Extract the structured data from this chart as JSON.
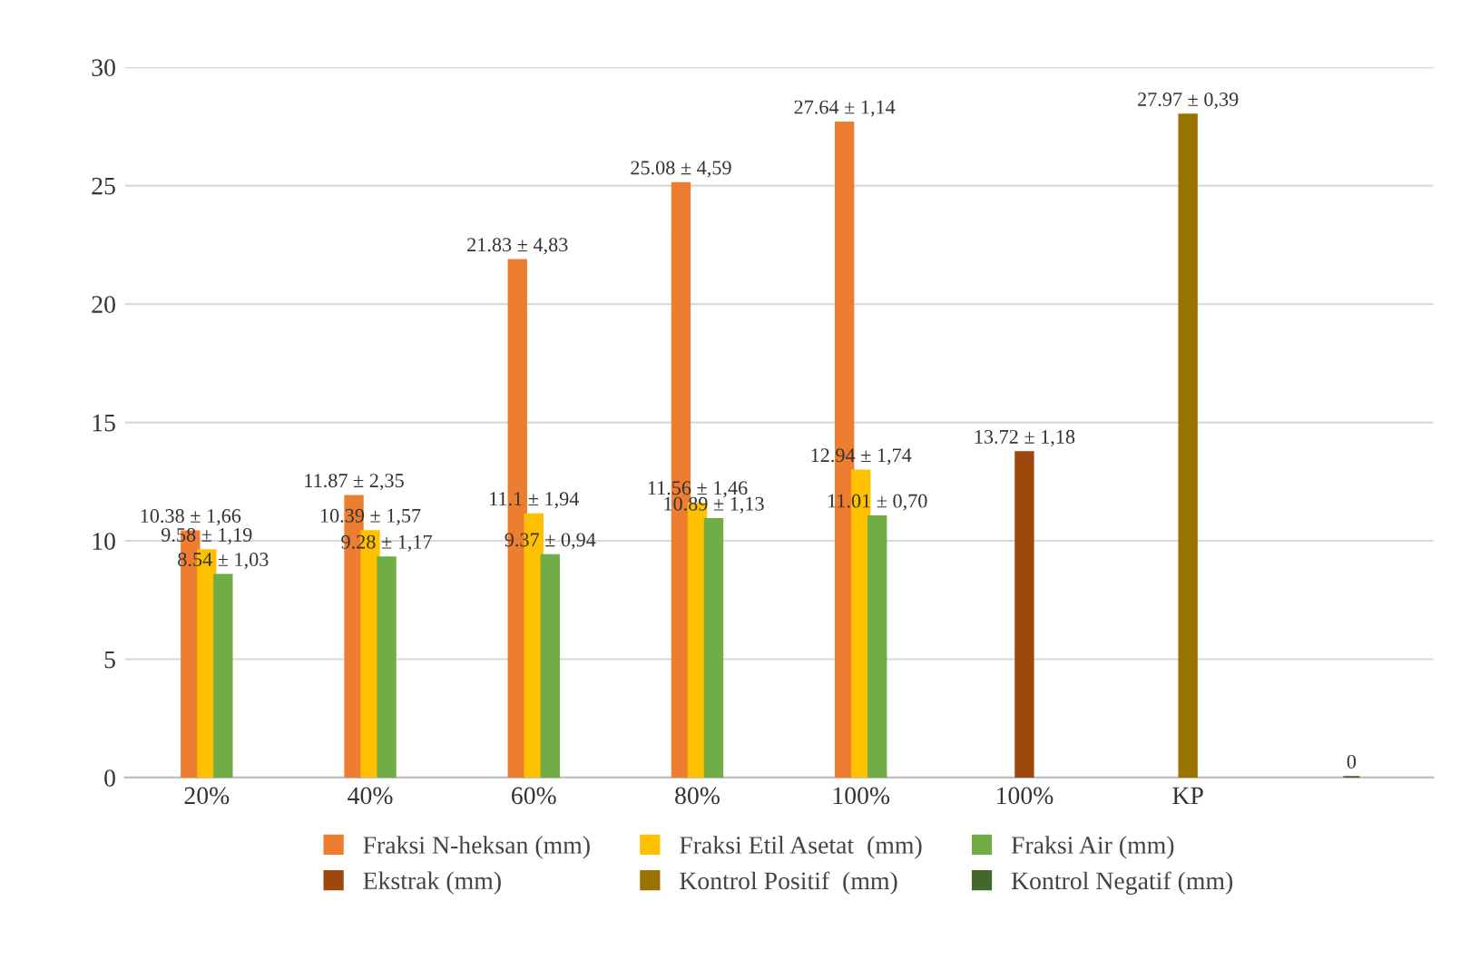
{
  "chart_data": {
    "type": "bar",
    "categories": [
      "20%",
      "40%",
      "60%",
      "80%",
      "100%",
      "100%",
      "KP",
      null
    ],
    "series": [
      {
        "name": "Fraksi N-heksan (mm)",
        "color": "#ed7d31",
        "values": [
          10.38,
          11.87,
          21.83,
          25.08,
          27.64,
          null,
          null,
          null
        ],
        "value_labels": [
          "10.38 ± 1,66",
          "11.87 ± 2,35",
          "21.83 ± 4,83",
          "25.08 ± 4,59",
          "27.64 ± 1,14",
          null,
          null,
          null
        ]
      },
      {
        "name": "Fraksi Etil Asetat  (mm)",
        "color": "#ffc000",
        "values": [
          9.58,
          10.39,
          11.1,
          11.56,
          12.94,
          null,
          null,
          null
        ],
        "value_labels": [
          "9.58 ± 1,19",
          "10.39 ± 1,57",
          "11.1 ± 1,94",
          "11.56 ± 1,46",
          "12.94 ± 1,74",
          null,
          null,
          null
        ]
      },
      {
        "name": "Fraksi Air (mm)",
        "color": "#70ad47",
        "values": [
          8.54,
          9.28,
          9.37,
          10.89,
          11.01,
          null,
          null,
          null
        ],
        "value_labels": [
          "8.54 ± 1,03",
          "9.28 ± 1,17",
          "9.37 ± 0,94",
          "10.89 ± 1,13",
          "11.01 ± 0,70",
          null,
          null,
          null
        ]
      },
      {
        "name": "Ekstrak (mm)",
        "color": "#9e480e",
        "values": [
          null,
          null,
          null,
          null,
          null,
          13.72,
          null,
          null
        ],
        "value_labels": [
          null,
          null,
          null,
          null,
          null,
          "13.72 ± 1,18",
          null,
          null
        ]
      },
      {
        "name": "Kontrol Positif  (mm)",
        "color": "#997300",
        "values": [
          null,
          null,
          null,
          null,
          null,
          null,
          27.97,
          null
        ],
        "value_labels": [
          null,
          null,
          null,
          null,
          null,
          null,
          "27.97 ± 0,39",
          null
        ]
      },
      {
        "name": "Kontrol Negatif (mm)",
        "color": "#43682b",
        "values": [
          null,
          null,
          null,
          null,
          null,
          null,
          null,
          0
        ],
        "value_labels": [
          null,
          null,
          null,
          null,
          null,
          null,
          null,
          "0"
        ]
      }
    ],
    "ylim": [
      0,
      30
    ],
    "yticks": [
      0,
      5,
      10,
      15,
      20,
      25,
      30
    ],
    "grid": "y",
    "legend": "bottom"
  }
}
